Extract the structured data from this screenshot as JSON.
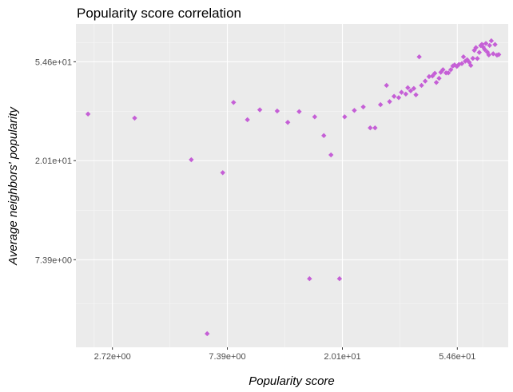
{
  "chart_data": {
    "type": "scatter",
    "title": "Popularity score correlation",
    "xlabel": "Popularity score",
    "ylabel": "Average neighbors' popularity",
    "x_scale": "log",
    "y_scale": "log",
    "xlim": [
      1.98,
      85.0
    ],
    "ylim": [
      3.05,
      80.0
    ],
    "x_ticks": [
      {
        "value": 2.72,
        "label": "2.72e+00"
      },
      {
        "value": 7.39,
        "label": "7.39e+00"
      },
      {
        "value": 20.1,
        "label": "2.01e+01"
      },
      {
        "value": 54.6,
        "label": "5.46e+01"
      }
    ],
    "y_ticks": [
      {
        "value": 7.39,
        "label": "7.39e+00"
      },
      {
        "value": 20.1,
        "label": "2.01e+01"
      },
      {
        "value": 54.6,
        "label": "5.46e+01"
      }
    ],
    "grid": true,
    "point_color": "#c55fd6",
    "panel_color": "#ebebeb",
    "points": [
      [
        2.2,
        32.2
      ],
      [
        3.3,
        30.9
      ],
      [
        5.4,
        20.3
      ],
      [
        7.1,
        17.8
      ],
      [
        6.2,
        3.5
      ],
      [
        7.8,
        36.2
      ],
      [
        8.8,
        30.4
      ],
      [
        9.8,
        33.6
      ],
      [
        11.4,
        33.2
      ],
      [
        12.5,
        29.6
      ],
      [
        13.8,
        33.0
      ],
      [
        15.1,
        6.1
      ],
      [
        15.8,
        31.3
      ],
      [
        17.1,
        25.9
      ],
      [
        18.2,
        21.3
      ],
      [
        19.6,
        6.1
      ],
      [
        20.5,
        31.3
      ],
      [
        22.3,
        33.4
      ],
      [
        24.1,
        34.6
      ],
      [
        25.6,
        28.0
      ],
      [
        26.7,
        28.0
      ],
      [
        28.0,
        35.4
      ],
      [
        29.5,
        43.0
      ],
      [
        30.3,
        36.5
      ],
      [
        31.5,
        38.5
      ],
      [
        32.8,
        38.0
      ],
      [
        33.6,
        40.1
      ],
      [
        34.9,
        39.4
      ],
      [
        35.5,
        42.0
      ],
      [
        36.4,
        40.7
      ],
      [
        37.4,
        41.7
      ],
      [
        38.1,
        39.1
      ],
      [
        39.2,
        57.4
      ],
      [
        40.0,
        43.0
      ],
      [
        41.3,
        44.9
      ],
      [
        42.7,
        47.0
      ],
      [
        44.0,
        47.3
      ],
      [
        44.9,
        48.6
      ],
      [
        45.5,
        44.3
      ],
      [
        46.6,
        46.2
      ],
      [
        47.3,
        49.1
      ],
      [
        48.2,
        50.4
      ],
      [
        49.5,
        48.8
      ],
      [
        50.5,
        48.8
      ],
      [
        51.6,
        50.4
      ],
      [
        52.5,
        52.3
      ],
      [
        53.3,
        52.9
      ],
      [
        54.4,
        52.1
      ],
      [
        55.4,
        53.2
      ],
      [
        56.8,
        53.6
      ],
      [
        57.6,
        57.4
      ],
      [
        58.5,
        54.9
      ],
      [
        59.5,
        55.7
      ],
      [
        60.6,
        54.3
      ],
      [
        61.4,
        52.6
      ],
      [
        62.5,
        56.5
      ],
      [
        63.3,
        61.3
      ],
      [
        64.2,
        63.0
      ],
      [
        65.0,
        56.4
      ],
      [
        66.1,
        60.0
      ],
      [
        66.9,
        64.3
      ],
      [
        67.6,
        65.1
      ],
      [
        68.4,
        63.3
      ],
      [
        69.3,
        61.8
      ],
      [
        70.0,
        65.7
      ],
      [
        70.9,
        60.2
      ],
      [
        71.8,
        58.5
      ],
      [
        72.3,
        64.4
      ],
      [
        73.4,
        67.5
      ],
      [
        74.6,
        59.2
      ],
      [
        75.8,
        65.0
      ],
      [
        77.1,
        58.4
      ],
      [
        78.3,
        58.7
      ]
    ]
  }
}
